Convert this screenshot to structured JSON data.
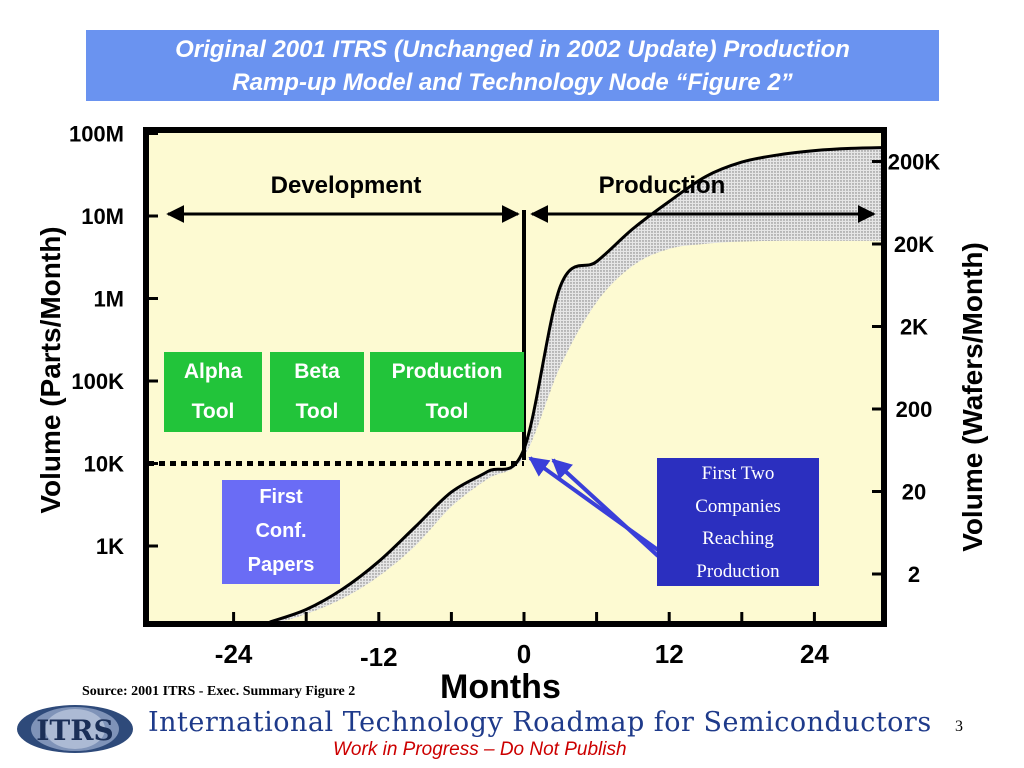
{
  "title": {
    "line1": "Original 2001 ITRS (Unchanged in 2002 Update) Production",
    "line2": "Ramp-up Model and Technology Node “Figure 2”"
  },
  "chart_data": {
    "type": "line",
    "title": "Original 2001 ITRS (Unchanged in 2002 Update) Production Ramp-up Model and Technology Node “Figure 2”",
    "xlabel": "Months",
    "ylabel": "Volume (Parts/Month)",
    "ylabel_right": "Volume (Wafers/Month)",
    "x_ticks": [
      -24,
      -12,
      0,
      12,
      24
    ],
    "x_tick_labels": [
      "-24",
      "-12",
      "0",
      "12",
      "24"
    ],
    "xlim": [
      -32,
      32
    ],
    "y_ticks_left": [
      1000,
      10000,
      100000,
      1000000,
      10000000,
      100000000
    ],
    "y_tick_labels_left": [
      "1K",
      "10K",
      "100K",
      "1M",
      "10M",
      "100M"
    ],
    "y_ticks_right": [
      2,
      20,
      200,
      2000,
      20000,
      200000
    ],
    "y_tick_labels_right": [
      "2",
      "20",
      "200",
      "2K",
      "20K",
      "200K"
    ],
    "y_scale": "log",
    "grid": false,
    "series": [
      {
        "x": [
          -21,
          -18,
          -15,
          -12,
          -9,
          -6,
          -3,
          0,
          3,
          6,
          9,
          12,
          15,
          18,
          21,
          24,
          27,
          31
        ],
        "values": [
          120,
          170,
          300,
          650,
          1700,
          4500,
          8000,
          15000,
          1400000,
          2800000,
          7000000,
          15000000,
          30000000,
          45000000,
          55000000,
          62000000,
          66000000,
          68000000
        ]
      },
      {
        "x": [
          -21,
          -18,
          -15,
          -12,
          -9,
          -6,
          -3,
          0,
          3,
          6,
          9,
          12,
          15,
          18,
          21,
          24,
          27,
          31
        ],
        "values": [
          110,
          150,
          230,
          430,
          1000,
          3000,
          6500,
          12000,
          150000,
          900000,
          2500000,
          4000000,
          4600000,
          4900000,
          5000000,
          5000000,
          5000000,
          5000000
        ]
      }
    ],
    "phases": [
      {
        "label": "Development",
        "x_range": [
          -32,
          0
        ]
      },
      {
        "label": "Production",
        "x_range": [
          0,
          32
        ]
      }
    ],
    "annotations": {
      "volume_line_left": "10K"
    }
  },
  "tools": [
    {
      "line1": "Alpha",
      "line2": "Tool"
    },
    {
      "line1": "Beta",
      "line2": "Tool"
    },
    {
      "line1": "Production",
      "line2": "Tool"
    }
  ],
  "conf_box": {
    "line1": "First",
    "line2": "Conf.",
    "line3": "Papers"
  },
  "companies_box": {
    "line1": "First Two",
    "line2": "Companies",
    "line3": "Reaching",
    "line4": "Production"
  },
  "source": "Source:  2001 ITRS - Exec. Summary Figure 2",
  "footer": {
    "org": "International Technology Roadmap for Semiconductors",
    "note": "Work in Progress – Do Not Publish",
    "page": "3",
    "logo_text": "ITRS"
  },
  "colors": {
    "title_bg": "#6a93f0",
    "plot_bg": "#fdfad2",
    "tool_green": "#22c43a",
    "conf_blue": "#6a6cf5",
    "companies_blue": "#2b2fbf",
    "arrow_blue": "#3a3fd9",
    "footer_red": "#cc0000"
  }
}
